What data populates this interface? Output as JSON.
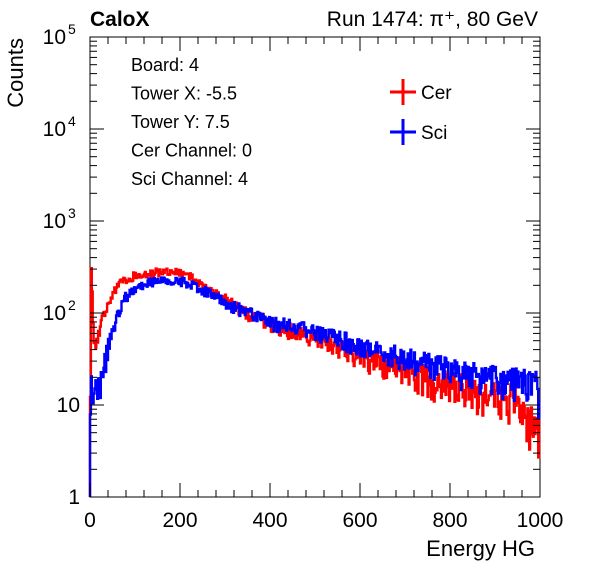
{
  "chart_data": {
    "type": "line",
    "title_left": "CaloX",
    "title_right": "Run 1474:   π⁺, 80 GeV",
    "xlabel": "Energy HG",
    "ylabel": "Counts",
    "xlim": [
      0,
      1000
    ],
    "ylim": [
      1,
      100000
    ],
    "ylog": true,
    "x_ticks": [
      {
        "value": 0,
        "label": "0"
      },
      {
        "value": 200,
        "label": "200"
      },
      {
        "value": 400,
        "label": "400"
      },
      {
        "value": 600,
        "label": "600"
      },
      {
        "value": 800,
        "label": "800"
      },
      {
        "value": 1000,
        "label": "1000"
      }
    ],
    "y_ticks": [
      {
        "value": 1,
        "base": "1",
        "exp": ""
      },
      {
        "value": 10,
        "base": "10",
        "exp": ""
      },
      {
        "value": 100,
        "base": "10",
        "exp": "2"
      },
      {
        "value": 1000,
        "base": "10",
        "exp": "3"
      },
      {
        "value": 10000,
        "base": "10",
        "exp": "4"
      },
      {
        "value": 100000,
        "base": "10",
        "exp": "5"
      }
    ],
    "info_lines": [
      "Board: 4",
      "Tower X: -5.5",
      "Tower Y: 7.5",
      "Cer Channel: 0",
      "Sci Channel: 4"
    ],
    "legend_position": "top-right",
    "series": [
      {
        "name": "Cer",
        "color": "#ff0000",
        "points": [
          [
            0,
            1
          ],
          [
            2,
            380
          ],
          [
            6,
            120
          ],
          [
            10,
            40
          ],
          [
            20,
            60
          ],
          [
            30,
            90
          ],
          [
            40,
            130
          ],
          [
            60,
            190
          ],
          [
            80,
            230
          ],
          [
            100,
            255
          ],
          [
            130,
            275
          ],
          [
            160,
            280
          ],
          [
            190,
            275
          ],
          [
            220,
            250
          ],
          [
            260,
            190
          ],
          [
            300,
            140
          ],
          [
            340,
            105
          ],
          [
            380,
            85
          ],
          [
            420,
            70
          ],
          [
            460,
            62
          ],
          [
            500,
            55
          ],
          [
            550,
            42
          ],
          [
            600,
            33
          ],
          [
            650,
            28
          ],
          [
            700,
            24
          ],
          [
            750,
            19
          ],
          [
            800,
            16
          ],
          [
            850,
            14
          ],
          [
            900,
            13
          ],
          [
            950,
            11
          ],
          [
            1000,
            4
          ]
        ]
      },
      {
        "name": "Sci",
        "color": "#0000ff",
        "points": [
          [
            0,
            1
          ],
          [
            2,
            25
          ],
          [
            6,
            10
          ],
          [
            10,
            14
          ],
          [
            20,
            16
          ],
          [
            30,
            25
          ],
          [
            40,
            40
          ],
          [
            50,
            65
          ],
          [
            60,
            95
          ],
          [
            80,
            150
          ],
          [
            100,
            185
          ],
          [
            130,
            215
          ],
          [
            160,
            230
          ],
          [
            190,
            225
          ],
          [
            220,
            210
          ],
          [
            260,
            170
          ],
          [
            300,
            130
          ],
          [
            340,
            105
          ],
          [
            380,
            85
          ],
          [
            420,
            75
          ],
          [
            460,
            68
          ],
          [
            500,
            62
          ],
          [
            550,
            52
          ],
          [
            600,
            45
          ],
          [
            650,
            38
          ],
          [
            700,
            32
          ],
          [
            750,
            28
          ],
          [
            800,
            24
          ],
          [
            850,
            21
          ],
          [
            900,
            19
          ],
          [
            950,
            18
          ],
          [
            990,
            17
          ],
          [
            1000,
            10
          ]
        ]
      }
    ]
  }
}
